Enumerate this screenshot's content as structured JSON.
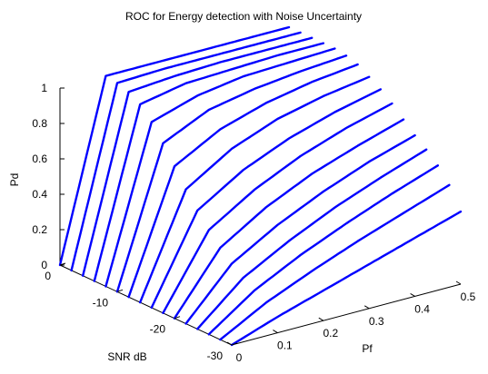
{
  "chart_data": {
    "type": "line",
    "title": "ROC for Energy detection with Noise Uncertainty",
    "xlabel": "Pf",
    "ylabel": "SNR dB",
    "zlabel": "Pd",
    "xlim": [
      0,
      0.5
    ],
    "ylim": [
      -30,
      0
    ],
    "zlim": [
      0,
      1
    ],
    "x_ticks": [
      "0",
      "0.1",
      "0.2",
      "0.3",
      "0.4",
      "0.5"
    ],
    "y_ticks": [
      "0",
      "-10",
      "-20",
      "-30"
    ],
    "z_ticks": [
      "0",
      "0.2",
      "0.4",
      "0.6",
      "0.8",
      "1"
    ],
    "line_color": "#0000ff",
    "series": [
      {
        "snr_db": -30,
        "pf": [
          0,
          0.1,
          0.2,
          0.3,
          0.4,
          0.5
        ],
        "pd": [
          0,
          0.09,
          0.17,
          0.25,
          0.33,
          0.41
        ]
      },
      {
        "snr_db": -28,
        "pf": [
          0,
          0.1,
          0.2,
          0.3,
          0.4,
          0.5
        ],
        "pd": [
          0,
          0.14,
          0.25,
          0.35,
          0.44,
          0.53
        ]
      },
      {
        "snr_db": -26,
        "pf": [
          0,
          0.1,
          0.2,
          0.3,
          0.4,
          0.5
        ],
        "pd": [
          0,
          0.18,
          0.31,
          0.42,
          0.52,
          0.61
        ]
      },
      {
        "snr_db": -24,
        "pf": [
          0,
          0.1,
          0.2,
          0.3,
          0.4,
          0.5
        ],
        "pd": [
          0,
          0.22,
          0.36,
          0.48,
          0.58,
          0.67
        ]
      },
      {
        "snr_db": -22,
        "pf": [
          0,
          0.1,
          0.2,
          0.3,
          0.4,
          0.5
        ],
        "pd": [
          0,
          0.27,
          0.42,
          0.54,
          0.64,
          0.72
        ]
      },
      {
        "snr_db": -20,
        "pf": [
          0,
          0.1,
          0.2,
          0.3,
          0.4,
          0.5
        ],
        "pd": [
          0,
          0.33,
          0.49,
          0.61,
          0.7,
          0.78
        ]
      },
      {
        "snr_db": -18,
        "pf": [
          0,
          0.1,
          0.2,
          0.3,
          0.4,
          0.5
        ],
        "pd": [
          0,
          0.4,
          0.56,
          0.68,
          0.77,
          0.84
        ]
      },
      {
        "snr_db": -16,
        "pf": [
          0,
          0.1,
          0.2,
          0.3,
          0.4,
          0.5
        ],
        "pd": [
          0,
          0.48,
          0.64,
          0.75,
          0.83,
          0.89
        ]
      },
      {
        "snr_db": -14,
        "pf": [
          0,
          0.1,
          0.2,
          0.3,
          0.4,
          0.5
        ],
        "pd": [
          0,
          0.57,
          0.73,
          0.83,
          0.89,
          0.93
        ]
      },
      {
        "snr_db": -12,
        "pf": [
          0,
          0.1,
          0.2,
          0.3,
          0.4,
          0.5
        ],
        "pd": [
          0,
          0.67,
          0.81,
          0.89,
          0.94,
          0.97
        ]
      },
      {
        "snr_db": -10,
        "pf": [
          0,
          0.1,
          0.2,
          0.3,
          0.4,
          0.5
        ],
        "pd": [
          0,
          0.77,
          0.89,
          0.94,
          0.97,
          0.99
        ]
      },
      {
        "snr_db": -8,
        "pf": [
          0,
          0.1,
          0.2,
          0.3,
          0.4,
          0.5
        ],
        "pd": [
          0,
          0.86,
          0.94,
          0.98,
          0.99,
          1.0
        ]
      },
      {
        "snr_db": -6,
        "pf": [
          0,
          0.1,
          0.2,
          0.3,
          0.4,
          0.5
        ],
        "pd": [
          0,
          0.93,
          0.98,
          0.99,
          1.0,
          1.0
        ]
      },
      {
        "snr_db": -4,
        "pf": [
          0,
          0.1,
          0.2,
          0.3,
          0.4,
          0.5
        ],
        "pd": [
          0,
          0.97,
          0.99,
          1.0,
          1.0,
          1.0
        ]
      },
      {
        "snr_db": -2,
        "pf": [
          0,
          0.1,
          0.2,
          0.3,
          0.4,
          0.5
        ],
        "pd": [
          0,
          0.99,
          1.0,
          1.0,
          1.0,
          1.0
        ]
      },
      {
        "snr_db": 0,
        "pf": [
          0,
          0.1,
          0.2,
          0.3,
          0.4,
          0.5
        ],
        "pd": [
          0,
          1.0,
          1.0,
          1.0,
          1.0,
          1.0
        ]
      }
    ]
  }
}
